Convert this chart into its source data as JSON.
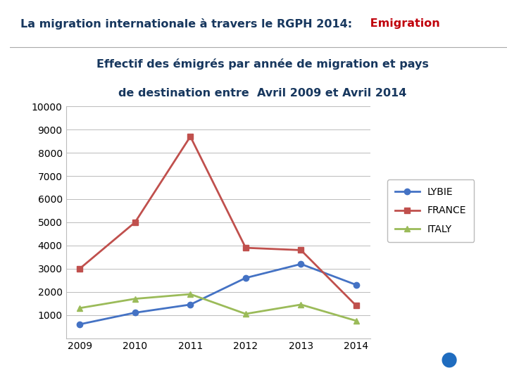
{
  "title_line1": "Effectif des émigrés par année de migration et pays",
  "title_line2": "de destination entre  Avril 2009 et Avril 2014",
  "header_text": "La migration internationale à travers le RGPH 2014:",
  "header_highlight": " Emigration",
  "years": [
    2009,
    2010,
    2011,
    2012,
    2013,
    2014
  ],
  "lybie": [
    600,
    1100,
    1450,
    2600,
    3200,
    2300
  ],
  "france": [
    3000,
    5000,
    8700,
    3900,
    3800,
    1400
  ],
  "italy": [
    1300,
    1700,
    1900,
    1050,
    1450,
    750
  ],
  "lybie_color": "#4472C4",
  "france_color": "#C0504D",
  "italy_color": "#9BBB59",
  "ylim": [
    0,
    10000
  ],
  "yticks": [
    0,
    1000,
    2000,
    3000,
    4000,
    5000,
    6000,
    7000,
    8000,
    9000,
    10000
  ],
  "bg_color": "#FFFFFF",
  "plot_bg": "#FFFFFF",
  "grid_color": "#BBBBBB",
  "header_color": "#17375E",
  "highlight_color": "#C0000B",
  "title_color": "#17375E",
  "lybie_marker": "o",
  "france_marker": "s",
  "italy_marker": "^",
  "linewidth": 2.0,
  "markersize": 6,
  "blue_bar_color": "#1F6CBF",
  "green_bar_color": "#70AD47"
}
